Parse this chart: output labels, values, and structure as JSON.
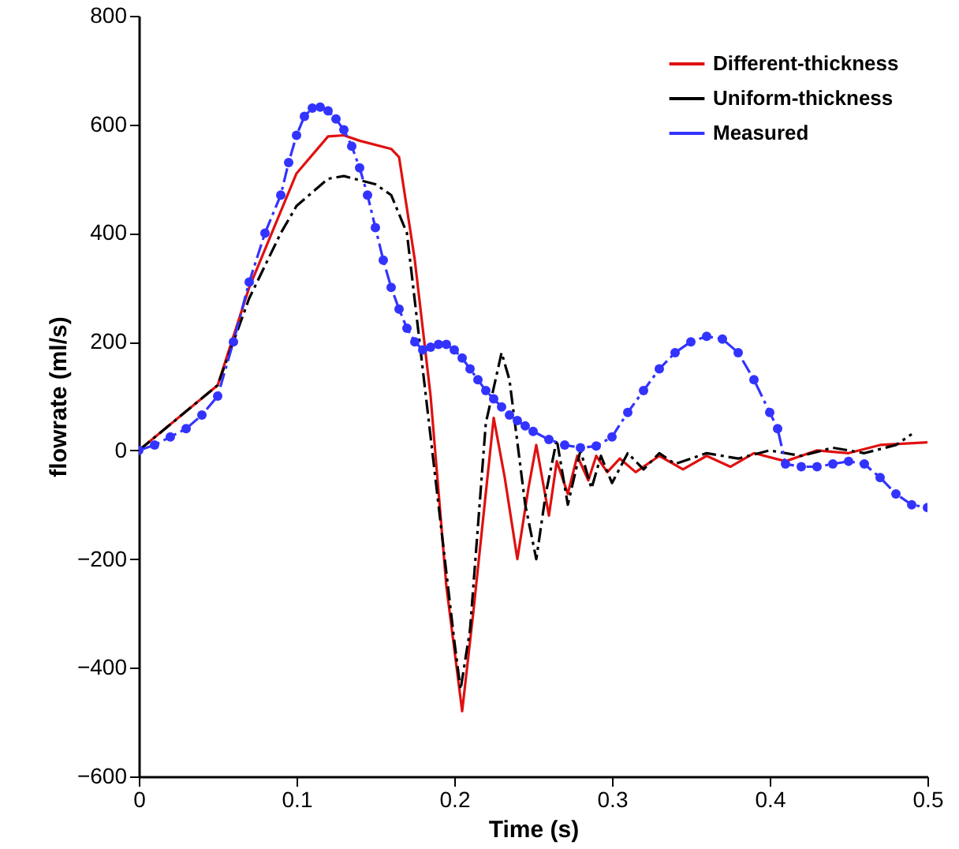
{
  "chart_data": {
    "type": "line",
    "xlabel": "Time (s)",
    "ylabel": "flowrate (ml/s)",
    "xlim": [
      0,
      0.5
    ],
    "ylim": [
      -600,
      800
    ],
    "xticks": [
      0,
      0.1,
      0.2,
      0.3,
      0.4,
      0.5
    ],
    "yticks": [
      -600,
      -400,
      -200,
      0,
      200,
      400,
      600,
      800
    ],
    "grid": false,
    "legend": "top right",
    "series": [
      {
        "name": "Different-thickness",
        "color": "#e01010",
        "line_style": "solid",
        "marker": "none",
        "x": [
          0,
          0.05,
          0.07,
          0.09,
          0.1,
          0.12,
          0.13,
          0.14,
          0.16,
          0.165,
          0.175,
          0.185,
          0.195,
          0.205,
          0.212,
          0.225,
          0.232,
          0.24,
          0.247,
          0.252,
          0.26,
          0.265,
          0.272,
          0.278,
          0.285,
          0.29,
          0.297,
          0.305,
          0.315,
          0.33,
          0.345,
          0.36,
          0.375,
          0.39,
          0.41,
          0.43,
          0.45,
          0.47,
          0.5
        ],
        "values": [
          0,
          120,
          300,
          440,
          510,
          578,
          580,
          570,
          555,
          540,
          350,
          100,
          -250,
          -480,
          -300,
          60,
          -50,
          -200,
          -70,
          10,
          -120,
          -20,
          -80,
          -10,
          -55,
          -10,
          -40,
          -15,
          -40,
          -10,
          -35,
          -10,
          -30,
          -5,
          -20,
          0,
          -5,
          10,
          15
        ]
      },
      {
        "name": "Uniform-thickness",
        "color": "#000000",
        "line_style": "dashed",
        "marker": "none",
        "x": [
          0,
          0.05,
          0.07,
          0.09,
          0.1,
          0.12,
          0.13,
          0.15,
          0.16,
          0.17,
          0.18,
          0.19,
          0.2,
          0.204,
          0.21,
          0.22,
          0.23,
          0.235,
          0.245,
          0.252,
          0.258,
          0.265,
          0.272,
          0.28,
          0.287,
          0.293,
          0.3,
          0.31,
          0.32,
          0.33,
          0.34,
          0.36,
          0.38,
          0.4,
          0.42,
          0.44,
          0.46,
          0.48,
          0.49
        ],
        "values": [
          0,
          120,
          280,
          400,
          450,
          500,
          505,
          490,
          470,
          400,
          150,
          -100,
          -350,
          -440,
          -330,
          50,
          180,
          130,
          -100,
          -200,
          -80,
          20,
          -100,
          0,
          -70,
          -10,
          -60,
          -5,
          -35,
          -5,
          -25,
          -5,
          -15,
          0,
          -10,
          5,
          -5,
          10,
          30
        ]
      },
      {
        "name": "Measured",
        "color": "#3333ff",
        "line_style": "dashed",
        "marker": "circle",
        "x": [
          0,
          0.01,
          0.02,
          0.03,
          0.04,
          0.05,
          0.06,
          0.07,
          0.08,
          0.09,
          0.095,
          0.1,
          0.105,
          0.11,
          0.115,
          0.12,
          0.125,
          0.13,
          0.135,
          0.14,
          0.145,
          0.15,
          0.155,
          0.16,
          0.165,
          0.17,
          0.175,
          0.18,
          0.185,
          0.19,
          0.195,
          0.2,
          0.205,
          0.21,
          0.215,
          0.22,
          0.225,
          0.23,
          0.235,
          0.24,
          0.245,
          0.25,
          0.26,
          0.27,
          0.28,
          0.29,
          0.3,
          0.31,
          0.32,
          0.33,
          0.34,
          0.35,
          0.36,
          0.37,
          0.38,
          0.39,
          0.4,
          0.405,
          0.41,
          0.42,
          0.43,
          0.44,
          0.45,
          0.46,
          0.47,
          0.48,
          0.49,
          0.5
        ],
        "values": [
          0,
          10,
          25,
          40,
          65,
          100,
          200,
          310,
          400,
          470,
          530,
          580,
          615,
          630,
          632,
          625,
          610,
          590,
          560,
          520,
          470,
          410,
          350,
          300,
          260,
          225,
          200,
          185,
          190,
          195,
          195,
          185,
          170,
          150,
          130,
          110,
          95,
          80,
          65,
          55,
          45,
          35,
          20,
          10,
          5,
          8,
          25,
          70,
          110,
          150,
          180,
          200,
          210,
          205,
          180,
          130,
          70,
          40,
          -25,
          -30,
          -30,
          -25,
          -20,
          -25,
          -50,
          -80,
          -100,
          -105
        ]
      }
    ]
  }
}
